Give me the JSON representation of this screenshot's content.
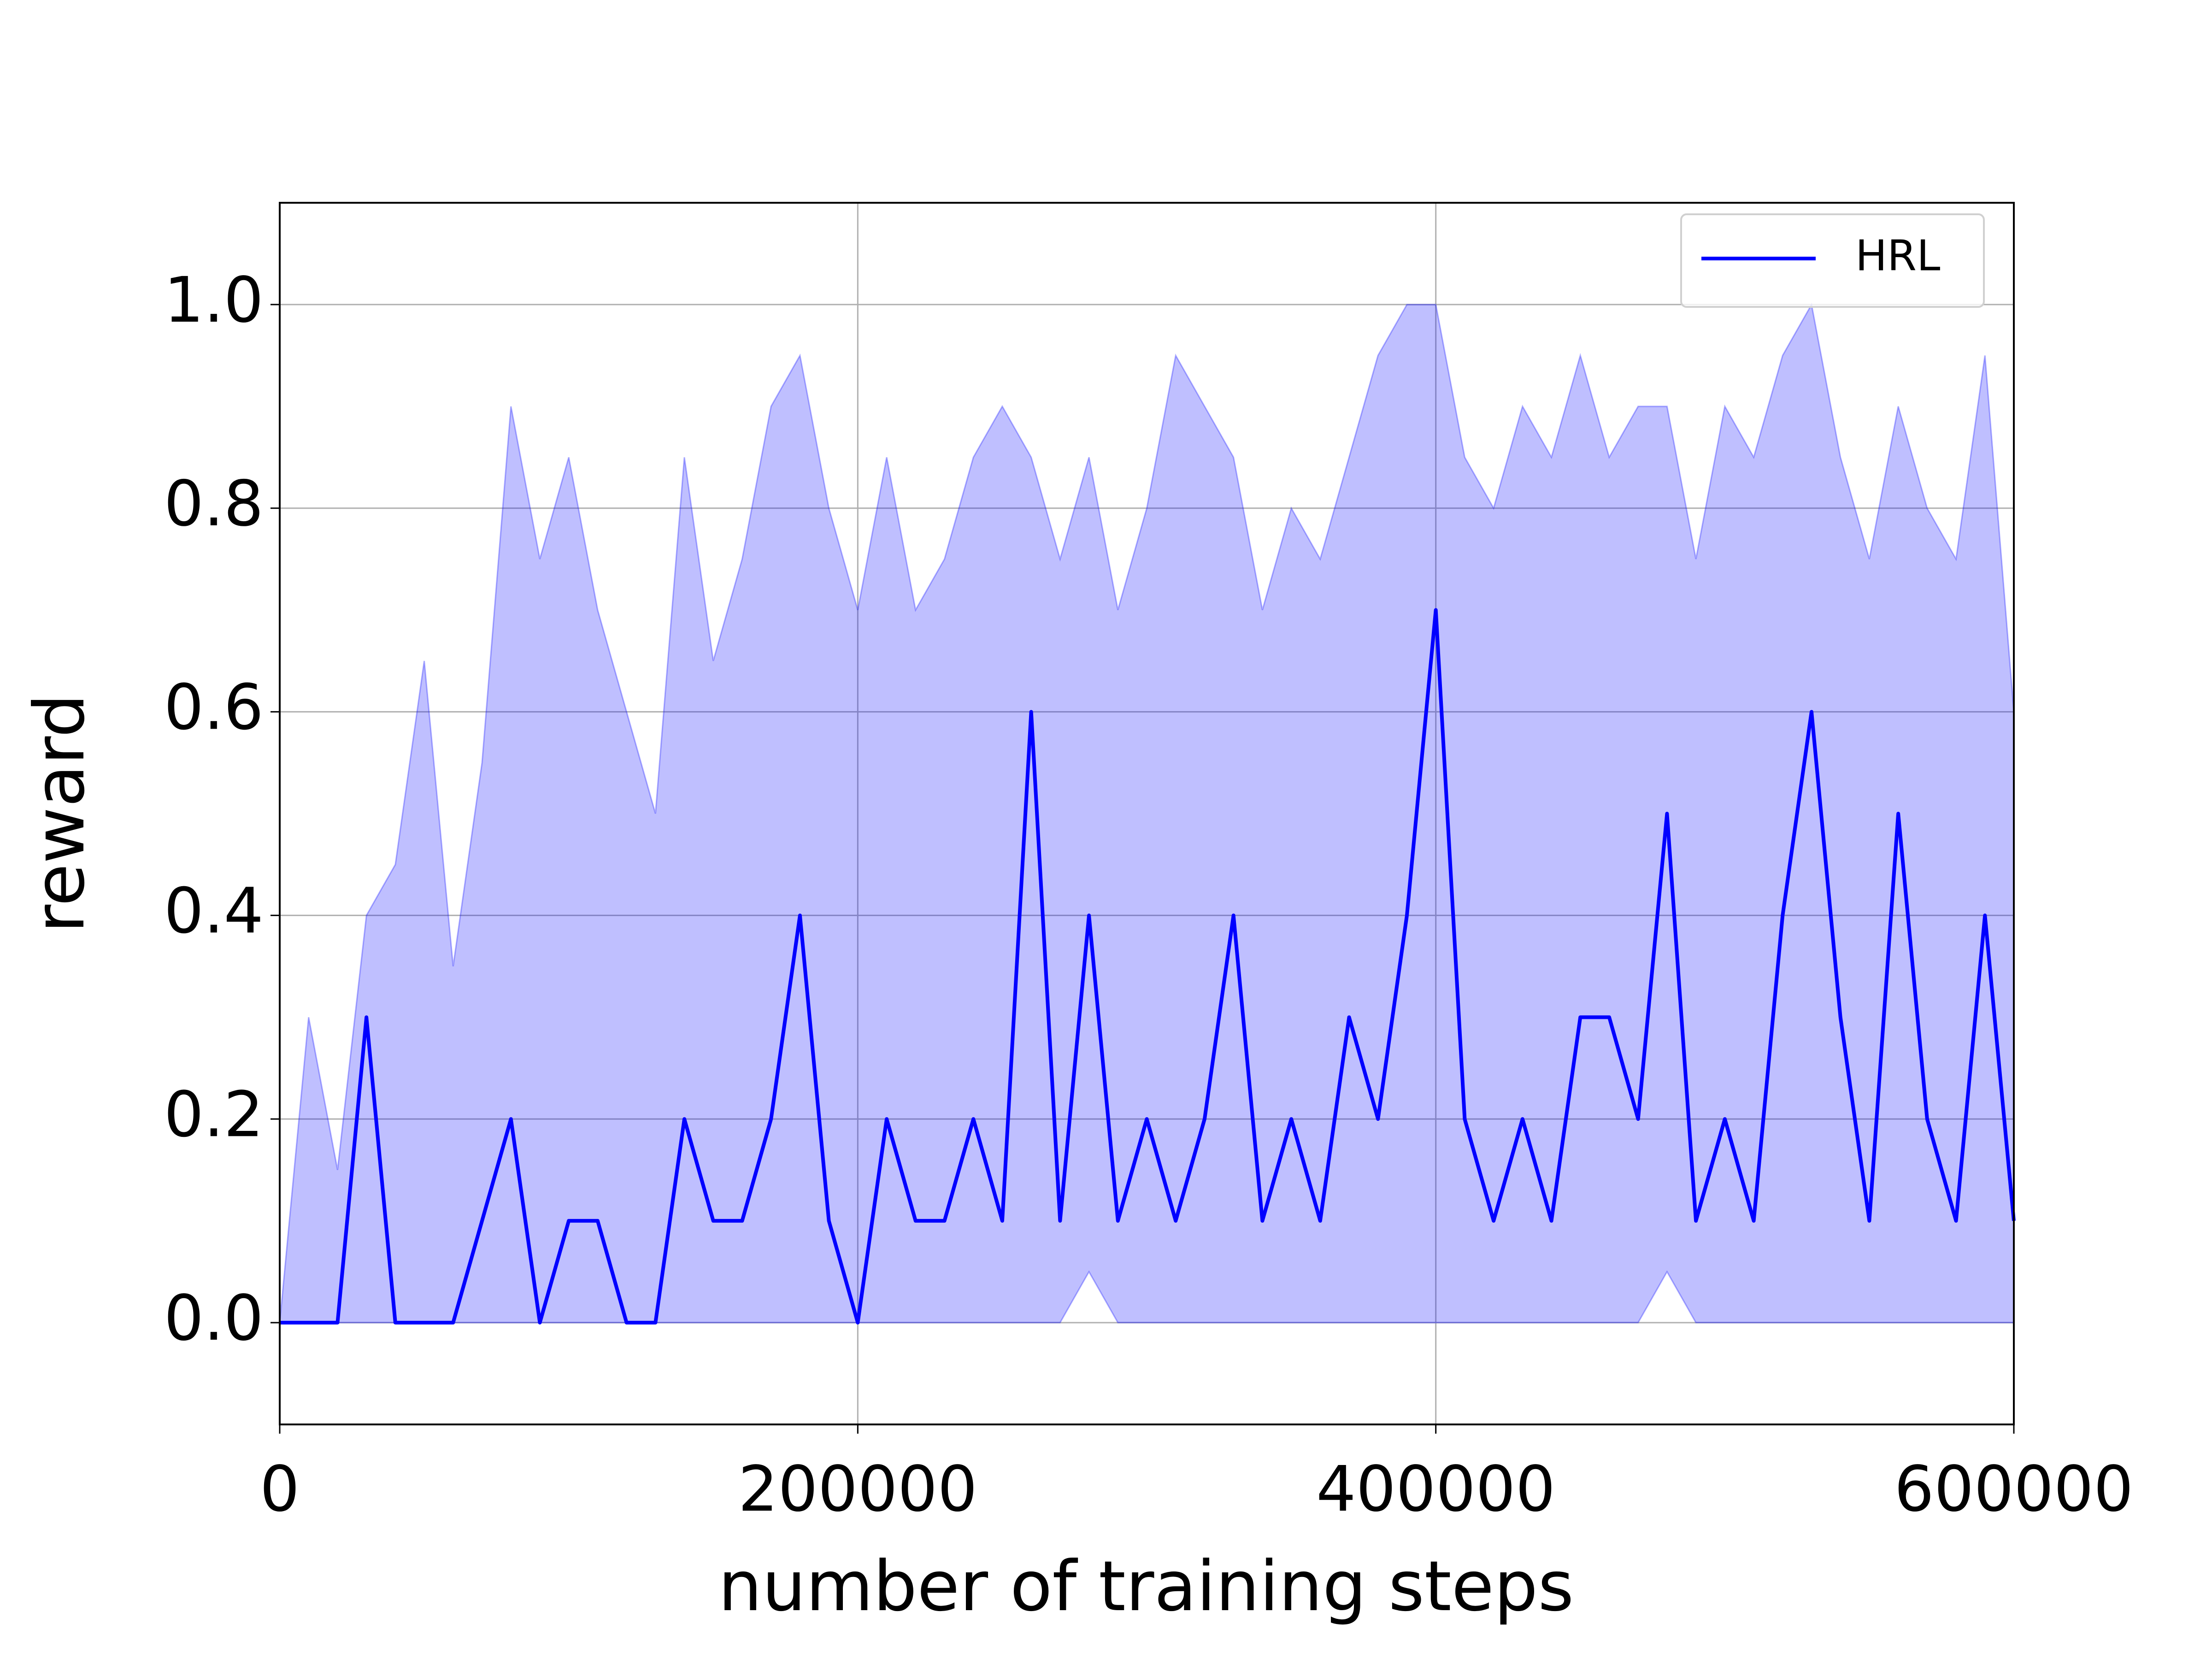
{
  "chart_data": {
    "type": "line",
    "xlabel": "number of training steps",
    "ylabel": "reward",
    "x": [
      0,
      10000,
      20000,
      30000,
      40000,
      50000,
      60000,
      70000,
      80000,
      90000,
      100000,
      110000,
      120000,
      130000,
      140000,
      150000,
      160000,
      170000,
      180000,
      190000,
      200000,
      210000,
      220000,
      230000,
      240000,
      250000,
      260000,
      270000,
      280000,
      290000,
      300000,
      310000,
      320000,
      330000,
      340000,
      350000,
      360000,
      370000,
      380000,
      390000,
      400000,
      410000,
      420000,
      430000,
      440000,
      450000,
      460000,
      470000,
      480000,
      490000,
      500000,
      510000,
      520000,
      530000,
      540000,
      550000,
      560000,
      570000,
      580000,
      590000,
      600000
    ],
    "series": [
      {
        "name": "HRL",
        "color": "#0000ff",
        "values": [
          0,
          0,
          0,
          0.3,
          0,
          0,
          0,
          0.1,
          0.2,
          0,
          0.1,
          0.1,
          0,
          0,
          0.2,
          0.1,
          0.1,
          0.2,
          0.4,
          0.1,
          0,
          0.2,
          0.1,
          0.1,
          0.2,
          0.1,
          0.6,
          0.1,
          0.4,
          0.1,
          0.2,
          0.1,
          0.2,
          0.4,
          0.1,
          0.2,
          0.1,
          0.3,
          0.2,
          0.4,
          0.7,
          0.2,
          0.1,
          0.2,
          0.1,
          0.3,
          0.3,
          0.2,
          0.5,
          0.1,
          0.2,
          0.1,
          0.4,
          0.6,
          0.3,
          0.1,
          0.5,
          0.2,
          0.1,
          0.4,
          0.1
        ],
        "upper": [
          0,
          0.3,
          0.15,
          0.4,
          0.45,
          0.65,
          0.35,
          0.55,
          0.9,
          0.75,
          0.85,
          0.7,
          0.6,
          0.5,
          0.85,
          0.65,
          0.75,
          0.9,
          0.95,
          0.8,
          0.7,
          0.85,
          0.7,
          0.75,
          0.85,
          0.9,
          0.85,
          0.75,
          0.85,
          0.7,
          0.8,
          0.95,
          0.9,
          0.85,
          0.7,
          0.8,
          0.75,
          0.85,
          0.95,
          1.0,
          1.0,
          0.85,
          0.8,
          0.9,
          0.85,
          0.95,
          0.85,
          0.9,
          0.9,
          0.75,
          0.9,
          0.85,
          0.95,
          1.0,
          0.85,
          0.75,
          0.9,
          0.8,
          0.75,
          0.95,
          0.6
        ],
        "lower": [
          0,
          0,
          0,
          0,
          0,
          0,
          0,
          0,
          0,
          0,
          0,
          0,
          0,
          0,
          0,
          0,
          0,
          0,
          0,
          0,
          0,
          0,
          0,
          0,
          0,
          0,
          0,
          0,
          0.05,
          0,
          0,
          0,
          0,
          0,
          0,
          0,
          0,
          0,
          0,
          0,
          0,
          0,
          0,
          0,
          0,
          0,
          0,
          0,
          0.05,
          0,
          0,
          0,
          0,
          0,
          0,
          0,
          0,
          0,
          0,
          0,
          0
        ]
      }
    ],
    "xlim": [
      0,
      600000
    ],
    "ylim": [
      -0.1,
      1.1
    ],
    "xticks": [
      0,
      200000,
      400000,
      600000
    ],
    "yticks": [
      {
        "value": 0,
        "label": "0.0"
      },
      0.2,
      0.4,
      0.6,
      0.8,
      {
        "value": 1,
        "label": "1.0"
      }
    ],
    "grid": true,
    "legend": "upper right"
  }
}
